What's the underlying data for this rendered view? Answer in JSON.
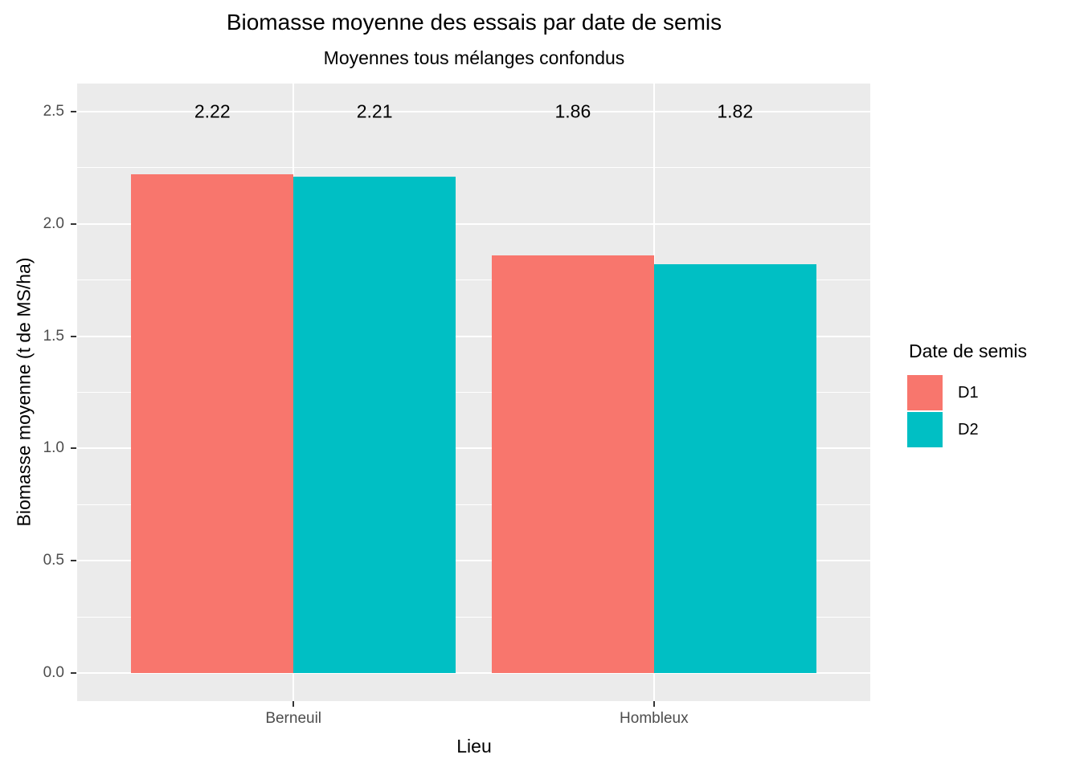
{
  "chart_data": {
    "type": "bar",
    "title": "Biomasse moyenne des essais par date de semis",
    "subtitle": "Moyennes tous mélanges confondus",
    "xlabel": "Lieu",
    "ylabel": "Biomasse moyenne (t de MS/ha)",
    "categories": [
      "Berneuil",
      "Hombleux"
    ],
    "series": [
      {
        "name": "D1",
        "color": "#F8766D",
        "values": [
          2.22,
          1.86
        ]
      },
      {
        "name": "D2",
        "color": "#00BFC4",
        "values": [
          2.21,
          1.82
        ]
      }
    ],
    "bar_value_labels": [
      [
        "2.22",
        "1.86"
      ],
      [
        "2.21",
        "1.82"
      ]
    ],
    "value_label_y": 2.5,
    "ylim": [
      0,
      2.5
    ],
    "y_major_ticks": [
      {
        "value": 0.0,
        "label": "0.0"
      },
      {
        "value": 0.5,
        "label": "0.5"
      },
      {
        "value": 1.0,
        "label": "1.0"
      },
      {
        "value": 1.5,
        "label": "1.5"
      },
      {
        "value": 2.0,
        "label": "2.0"
      },
      {
        "value": 2.5,
        "label": "2.5"
      }
    ],
    "y_minor_values": [
      0.25,
      0.75,
      1.25,
      1.75,
      2.25
    ],
    "legend": {
      "title": "Date de semis",
      "position": "right",
      "entries": [
        "D1",
        "D2"
      ]
    },
    "style": {
      "panel_bg": "#EBEBEB",
      "grid_color": "#FFFFFF",
      "axis_text_color": "#4D4D4D",
      "tick_mark_color": "#333333",
      "text_color": "#000000"
    },
    "grid": true
  }
}
